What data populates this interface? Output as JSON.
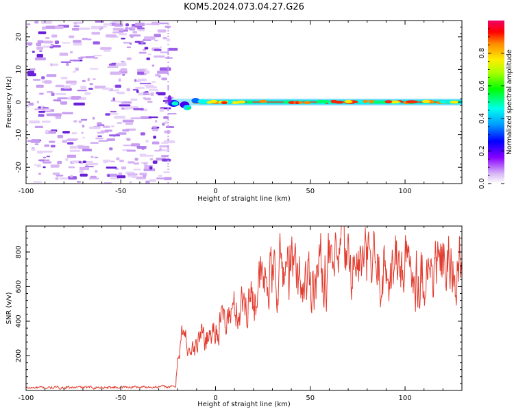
{
  "title": "KOM5.2024.073.04.27.G26",
  "colors": {
    "snr_line": "#e33b2e",
    "axes": "#000000"
  },
  "chart_data": [
    {
      "type": "heatmap",
      "name": "spectrogram",
      "xlabel": "Height of straight line (km)",
      "ylabel": "Frequency (Hz)",
      "xlim": [
        -100,
        130
      ],
      "ylim": [
        -25,
        25
      ],
      "xticks": [
        -100,
        -50,
        0,
        50,
        100
      ],
      "yticks": [
        -20,
        -10,
        0,
        10,
        20
      ],
      "colorbar": {
        "label": "Normalized spectral amplitude",
        "range": [
          0,
          1
        ],
        "ticks": [
          "0.0",
          "0.2",
          "0.4",
          "0.6",
          "0.8"
        ],
        "colormap": "rainbow (white-violet-blue-cyan-green-yellow-red-magenta)"
      },
      "features": {
        "noise_region_x": [
          -100,
          -25
        ],
        "carrier_start_x": -25,
        "carrier_frequency_hz": 0
      }
    },
    {
      "type": "line",
      "name": "snr",
      "xlabel": "Height of straight line (km)",
      "ylabel": "SNR (v/v)",
      "xlim": [
        -100,
        130
      ],
      "ylim": [
        0,
        950
      ],
      "xticks": [
        -100,
        -50,
        0,
        50,
        100
      ],
      "yticks": [
        200,
        400,
        600,
        800
      ],
      "series": [
        {
          "x": [
            -100,
            -60,
            -40,
            -21,
            -20,
            -18,
            -15,
            -12,
            -10,
            -8,
            -5,
            0,
            5,
            10,
            15,
            20,
            25,
            30,
            35,
            40,
            45,
            50,
            55,
            60,
            65,
            67,
            70,
            75,
            80,
            85,
            90,
            95,
            100,
            105,
            110,
            115,
            120,
            125,
            130
          ],
          "y": [
            15,
            18,
            20,
            22,
            200,
            320,
            280,
            220,
            250,
            330,
            300,
            360,
            410,
            460,
            500,
            560,
            620,
            650,
            700,
            720,
            620,
            640,
            700,
            720,
            680,
            930,
            700,
            720,
            730,
            700,
            690,
            720,
            710,
            700,
            690,
            700,
            720,
            680,
            700
          ]
        }
      ]
    }
  ]
}
